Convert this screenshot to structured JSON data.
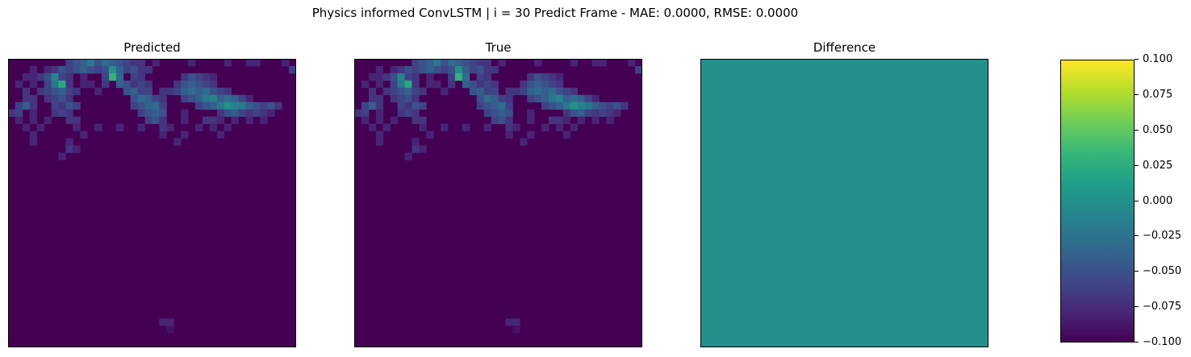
{
  "figure": {
    "title": "Physics informed ConvLSTM | i = 30 Predict Frame - MAE: 0.0000, RMSE: 0.0000"
  },
  "chart_data": {
    "type": "heatmap",
    "colormap": "viridis",
    "vmin": -0.1,
    "vmax": 0.1,
    "grid_size": 40,
    "panels": [
      {
        "title": "Predicted"
      },
      {
        "title": "True"
      },
      {
        "title": "Difference",
        "uniform_value": 0.0
      }
    ],
    "colorbar": {
      "ticks": [
        "0.100",
        "0.075",
        "0.050",
        "0.025",
        "0.000",
        "−0.025",
        "−0.050",
        "−0.075",
        "−0.100"
      ],
      "tick_values": [
        0.1,
        0.075,
        0.05,
        0.025,
        0.0,
        -0.025,
        -0.05,
        -0.075,
        -0.1
      ]
    },
    "field_cells": [
      [
        8,
        0,
        0.04
      ],
      [
        9,
        0,
        0.05
      ],
      [
        10,
        0,
        0.06
      ],
      [
        11,
        0,
        0.08
      ],
      [
        12,
        0,
        0.05
      ],
      [
        13,
        0,
        0.07
      ],
      [
        14,
        0,
        0.06
      ],
      [
        15,
        0,
        0.05
      ],
      [
        16,
        0,
        0.04
      ],
      [
        17,
        0,
        0.03
      ],
      [
        18,
        0,
        0.03
      ],
      [
        20,
        0,
        0.02
      ],
      [
        25,
        0,
        0.02
      ],
      [
        30,
        0,
        0.02
      ],
      [
        33,
        0,
        0.02
      ],
      [
        34,
        0,
        0.02
      ],
      [
        38,
        0,
        0.02
      ],
      [
        3,
        1,
        0.02
      ],
      [
        5,
        1,
        0.02
      ],
      [
        6,
        1,
        0.03
      ],
      [
        7,
        1,
        0.05
      ],
      [
        8,
        1,
        0.04
      ],
      [
        9,
        1,
        0.05
      ],
      [
        10,
        1,
        0.06
      ],
      [
        11,
        1,
        0.05
      ],
      [
        12,
        1,
        0.04
      ],
      [
        13,
        1,
        0.05
      ],
      [
        14,
        1,
        0.1
      ],
      [
        15,
        1,
        0.06
      ],
      [
        16,
        1,
        0.04
      ],
      [
        17,
        1,
        0.05
      ],
      [
        18,
        1,
        0.03
      ],
      [
        19,
        1,
        0.03
      ],
      [
        39,
        1,
        0.04
      ],
      [
        2,
        2,
        0.02
      ],
      [
        3,
        2,
        0.02
      ],
      [
        4,
        2,
        0.03
      ],
      [
        5,
        2,
        0.05
      ],
      [
        6,
        2,
        0.09
      ],
      [
        7,
        2,
        0.04
      ],
      [
        8,
        2,
        0.03
      ],
      [
        10,
        2,
        0.02
      ],
      [
        13,
        2,
        0.04
      ],
      [
        14,
        2,
        0.13
      ],
      [
        15,
        2,
        0.07
      ],
      [
        17,
        2,
        0.04
      ],
      [
        18,
        2,
        0.03
      ],
      [
        24,
        2,
        0.03
      ],
      [
        25,
        2,
        0.05
      ],
      [
        26,
        2,
        0.04
      ],
      [
        27,
        2,
        0.03
      ],
      [
        28,
        2,
        0.02
      ],
      [
        1,
        3,
        0.02
      ],
      [
        3,
        3,
        0.02
      ],
      [
        5,
        3,
        0.04
      ],
      [
        6,
        3,
        0.08
      ],
      [
        7,
        3,
        0.12
      ],
      [
        8,
        3,
        0.03
      ],
      [
        10,
        3,
        0.02
      ],
      [
        11,
        3,
        0.02
      ],
      [
        13,
        3,
        0.03
      ],
      [
        15,
        3,
        0.06
      ],
      [
        16,
        3,
        0.05
      ],
      [
        17,
        3,
        0.03
      ],
      [
        18,
        3,
        0.04
      ],
      [
        19,
        3,
        0.03
      ],
      [
        23,
        3,
        0.03
      ],
      [
        24,
        3,
        0.05
      ],
      [
        25,
        3,
        0.06
      ],
      [
        26,
        3,
        0.05
      ],
      [
        27,
        3,
        0.04
      ],
      [
        28,
        3,
        0.03
      ],
      [
        2,
        4,
        0.03
      ],
      [
        4,
        4,
        0.03
      ],
      [
        5,
        4,
        0.04
      ],
      [
        6,
        4,
        0.05
      ],
      [
        7,
        4,
        0.06
      ],
      [
        8,
        4,
        0.04
      ],
      [
        9,
        4,
        0.03
      ],
      [
        12,
        4,
        0.02
      ],
      [
        16,
        4,
        0.05
      ],
      [
        17,
        4,
        0.06
      ],
      [
        18,
        4,
        0.04
      ],
      [
        19,
        4,
        0.04
      ],
      [
        21,
        4,
        0.03
      ],
      [
        22,
        4,
        0.03
      ],
      [
        23,
        4,
        0.04
      ],
      [
        24,
        4,
        0.06
      ],
      [
        25,
        4,
        0.07
      ],
      [
        26,
        4,
        0.06
      ],
      [
        27,
        4,
        0.07
      ],
      [
        28,
        4,
        0.05
      ],
      [
        29,
        4,
        0.04
      ],
      [
        30,
        4,
        0.03
      ],
      [
        2,
        5,
        0.03
      ],
      [
        3,
        5,
        0.03
      ],
      [
        5,
        5,
        0.03
      ],
      [
        6,
        5,
        0.04
      ],
      [
        7,
        5,
        0.05
      ],
      [
        8,
        5,
        0.03
      ],
      [
        17,
        5,
        0.05
      ],
      [
        18,
        5,
        0.07
      ],
      [
        19,
        5,
        0.06
      ],
      [
        20,
        5,
        0.04
      ],
      [
        21,
        5,
        0.03
      ],
      [
        24,
        5,
        0.04
      ],
      [
        25,
        5,
        0.05
      ],
      [
        26,
        5,
        0.06
      ],
      [
        27,
        5,
        0.08
      ],
      [
        28,
        5,
        0.09
      ],
      [
        29,
        5,
        0.06
      ],
      [
        30,
        5,
        0.07
      ],
      [
        31,
        5,
        0.06
      ],
      [
        32,
        5,
        0.04
      ],
      [
        33,
        5,
        0.02
      ],
      [
        1,
        6,
        0.04
      ],
      [
        2,
        6,
        0.06
      ],
      [
        3,
        6,
        0.03
      ],
      [
        6,
        6,
        0.04
      ],
      [
        7,
        6,
        0.03
      ],
      [
        8,
        6,
        0.05
      ],
      [
        9,
        6,
        0.04
      ],
      [
        17,
        6,
        0.04
      ],
      [
        18,
        6,
        0.05
      ],
      [
        19,
        6,
        0.06
      ],
      [
        20,
        6,
        0.07
      ],
      [
        21,
        6,
        0.04
      ],
      [
        26,
        6,
        0.04
      ],
      [
        27,
        6,
        0.05
      ],
      [
        28,
        6,
        0.06
      ],
      [
        29,
        6,
        0.08
      ],
      [
        30,
        6,
        0.1
      ],
      [
        31,
        6,
        0.09
      ],
      [
        32,
        6,
        0.08
      ],
      [
        33,
        6,
        0.06
      ],
      [
        34,
        6,
        0.05
      ],
      [
        35,
        6,
        0.04
      ],
      [
        36,
        6,
        0.05
      ],
      [
        37,
        6,
        0.03
      ],
      [
        0,
        7,
        0.03
      ],
      [
        1,
        7,
        0.04
      ],
      [
        3,
        7,
        0.02
      ],
      [
        6,
        7,
        0.03
      ],
      [
        7,
        7,
        0.04
      ],
      [
        8,
        7,
        0.03
      ],
      [
        18,
        7,
        0.04
      ],
      [
        19,
        7,
        0.05
      ],
      [
        20,
        7,
        0.06
      ],
      [
        21,
        7,
        0.05
      ],
      [
        24,
        7,
        0.02
      ],
      [
        29,
        7,
        0.03
      ],
      [
        30,
        7,
        0.05
      ],
      [
        31,
        7,
        0.06
      ],
      [
        32,
        7,
        0.04
      ],
      [
        33,
        7,
        0.03
      ],
      [
        34,
        7,
        0.04
      ],
      [
        35,
        7,
        0.03
      ],
      [
        36,
        7,
        0.02
      ],
      [
        1,
        8,
        0.02
      ],
      [
        3,
        8,
        0.02
      ],
      [
        5,
        8,
        0.02
      ],
      [
        8,
        8,
        0.03
      ],
      [
        9,
        8,
        0.03
      ],
      [
        19,
        8,
        0.04
      ],
      [
        20,
        8,
        0.05
      ],
      [
        21,
        8,
        0.03
      ],
      [
        24,
        8,
        0.02
      ],
      [
        27,
        8,
        0.03
      ],
      [
        28,
        8,
        0.03
      ],
      [
        29,
        8,
        0.02
      ],
      [
        31,
        8,
        0.02
      ],
      [
        33,
        8,
        0.02
      ],
      [
        35,
        8,
        0.02
      ],
      [
        2,
        9,
        0.02
      ],
      [
        4,
        9,
        0.02
      ],
      [
        9,
        9,
        0.02
      ],
      [
        12,
        9,
        0.02
      ],
      [
        15,
        9,
        0.02
      ],
      [
        18,
        9,
        0.02
      ],
      [
        21,
        9,
        0.03
      ],
      [
        22,
        9,
        0.02
      ],
      [
        26,
        9,
        0.02
      ],
      [
        28,
        9,
        0.02
      ],
      [
        30,
        9,
        0.02
      ],
      [
        3,
        10,
        0.02
      ],
      [
        10,
        10,
        0.02
      ],
      [
        21,
        10,
        0.02
      ],
      [
        24,
        10,
        0.02
      ],
      [
        29,
        10,
        0.02
      ],
      [
        3,
        11,
        0.02
      ],
      [
        8,
        11,
        0.02
      ],
      [
        23,
        11,
        0.02
      ],
      [
        8,
        12,
        0.03
      ],
      [
        9,
        12,
        0.02
      ],
      [
        7,
        13,
        0.02
      ],
      [
        21,
        36,
        0.02
      ],
      [
        22,
        36,
        0.02
      ],
      [
        22,
        37,
        0.01
      ]
    ]
  }
}
